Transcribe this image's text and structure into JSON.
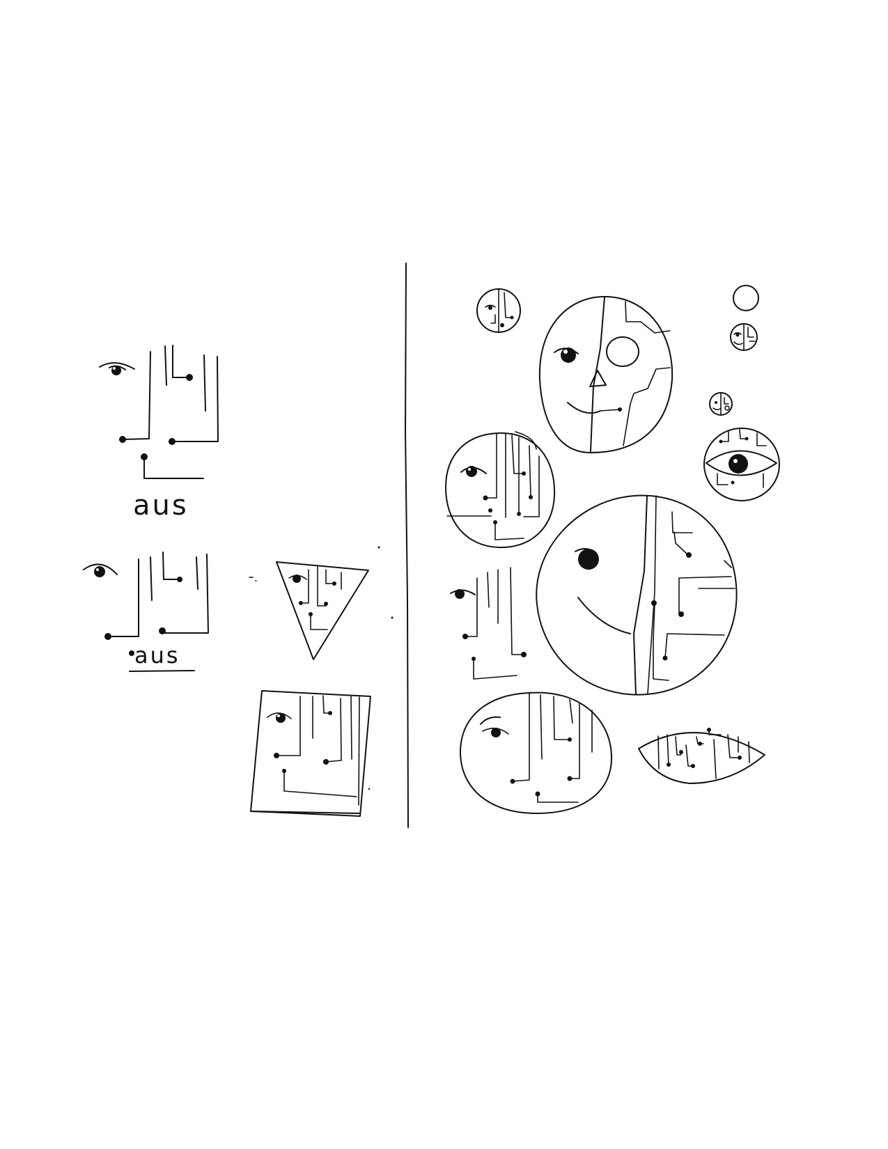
{
  "drawing": {
    "labels": {
      "first": "aus",
      "second": "aus"
    },
    "ink_color": "#111111",
    "paper_color": "#ffffff"
  }
}
